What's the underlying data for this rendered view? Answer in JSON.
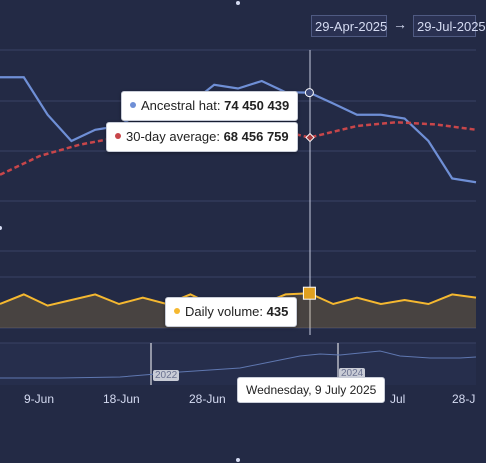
{
  "range": {
    "from": "29-Apr-2025",
    "arrow": "→",
    "to": "29-Jul-2025"
  },
  "tooltip_main": {
    "series1_name": "Ancestral hat:",
    "series1_value": "74 450 439",
    "series2_name": "30-day average:",
    "series2_value": "68 456 759"
  },
  "tooltip_volume": {
    "name": "Daily volume:",
    "value": "435"
  },
  "date_tooltip": "Wednesday, 9 July 2025",
  "x_ticks": [
    "9-Jun",
    "18-Jun",
    "28-Jun",
    "Jul",
    "28-J"
  ],
  "navigator_years": [
    "2022",
    "2024"
  ],
  "colors": {
    "background": "#232a45",
    "series_main": "#6f8fd6",
    "series_avg": "#c8464a",
    "volume": "#f5b830",
    "navigator": "#5f77b0"
  },
  "chart_data": [
    {
      "type": "line",
      "series": [
        {
          "name": "Ancestral hat",
          "x": [
            "2025-05-31",
            "2025-06-03",
            "2025-06-06",
            "2025-06-09",
            "2025-06-12",
            "2025-06-15",
            "2025-06-18",
            "2025-06-21",
            "2025-06-24",
            "2025-06-27",
            "2025-06-30",
            "2025-07-03",
            "2025-07-06",
            "2025-07-09",
            "2025-07-12",
            "2025-07-15",
            "2025-07-18",
            "2025-07-21",
            "2025-07-24",
            "2025-07-27",
            "2025-07-30"
          ],
          "values": [
            76.5,
            76.5,
            71.5,
            68.0,
            69.5,
            70.0,
            72.0,
            72.5,
            73.0,
            75.5,
            75.0,
            76.0,
            74.5,
            74.45,
            73.0,
            71.5,
            71.5,
            71.0,
            68.0,
            63.0,
            62.5
          ]
        },
        {
          "name": "30-day average",
          "x": [
            "2025-05-31",
            "2025-06-05",
            "2025-06-10",
            "2025-06-15",
            "2025-06-20",
            "2025-06-25",
            "2025-06-30",
            "2025-07-05",
            "2025-07-09",
            "2025-07-15",
            "2025-07-20",
            "2025-07-25",
            "2025-07-30"
          ],
          "values": [
            63.5,
            66.0,
            67.5,
            68.5,
            69.5,
            70.0,
            70.0,
            69.5,
            68.46,
            70.0,
            70.5,
            70.2,
            69.5
          ]
        }
      ]
    },
    {
      "type": "area",
      "series": [
        {
          "name": "Daily volume",
          "x": [
            "2025-05-31",
            "2025-06-03",
            "2025-06-06",
            "2025-06-09",
            "2025-06-12",
            "2025-06-15",
            "2025-06-18",
            "2025-06-21",
            "2025-06-24",
            "2025-06-27",
            "2025-06-30",
            "2025-07-03",
            "2025-07-06",
            "2025-07-09",
            "2025-07-12",
            "2025-07-15",
            "2025-07-18",
            "2025-07-21",
            "2025-07-24",
            "2025-07-27",
            "2025-07-30"
          ],
          "values": [
            300,
            420,
            280,
            350,
            420,
            300,
            380,
            300,
            420,
            280,
            350,
            300,
            420,
            435,
            300,
            380,
            300,
            350,
            300,
            420,
            380
          ]
        }
      ]
    }
  ]
}
